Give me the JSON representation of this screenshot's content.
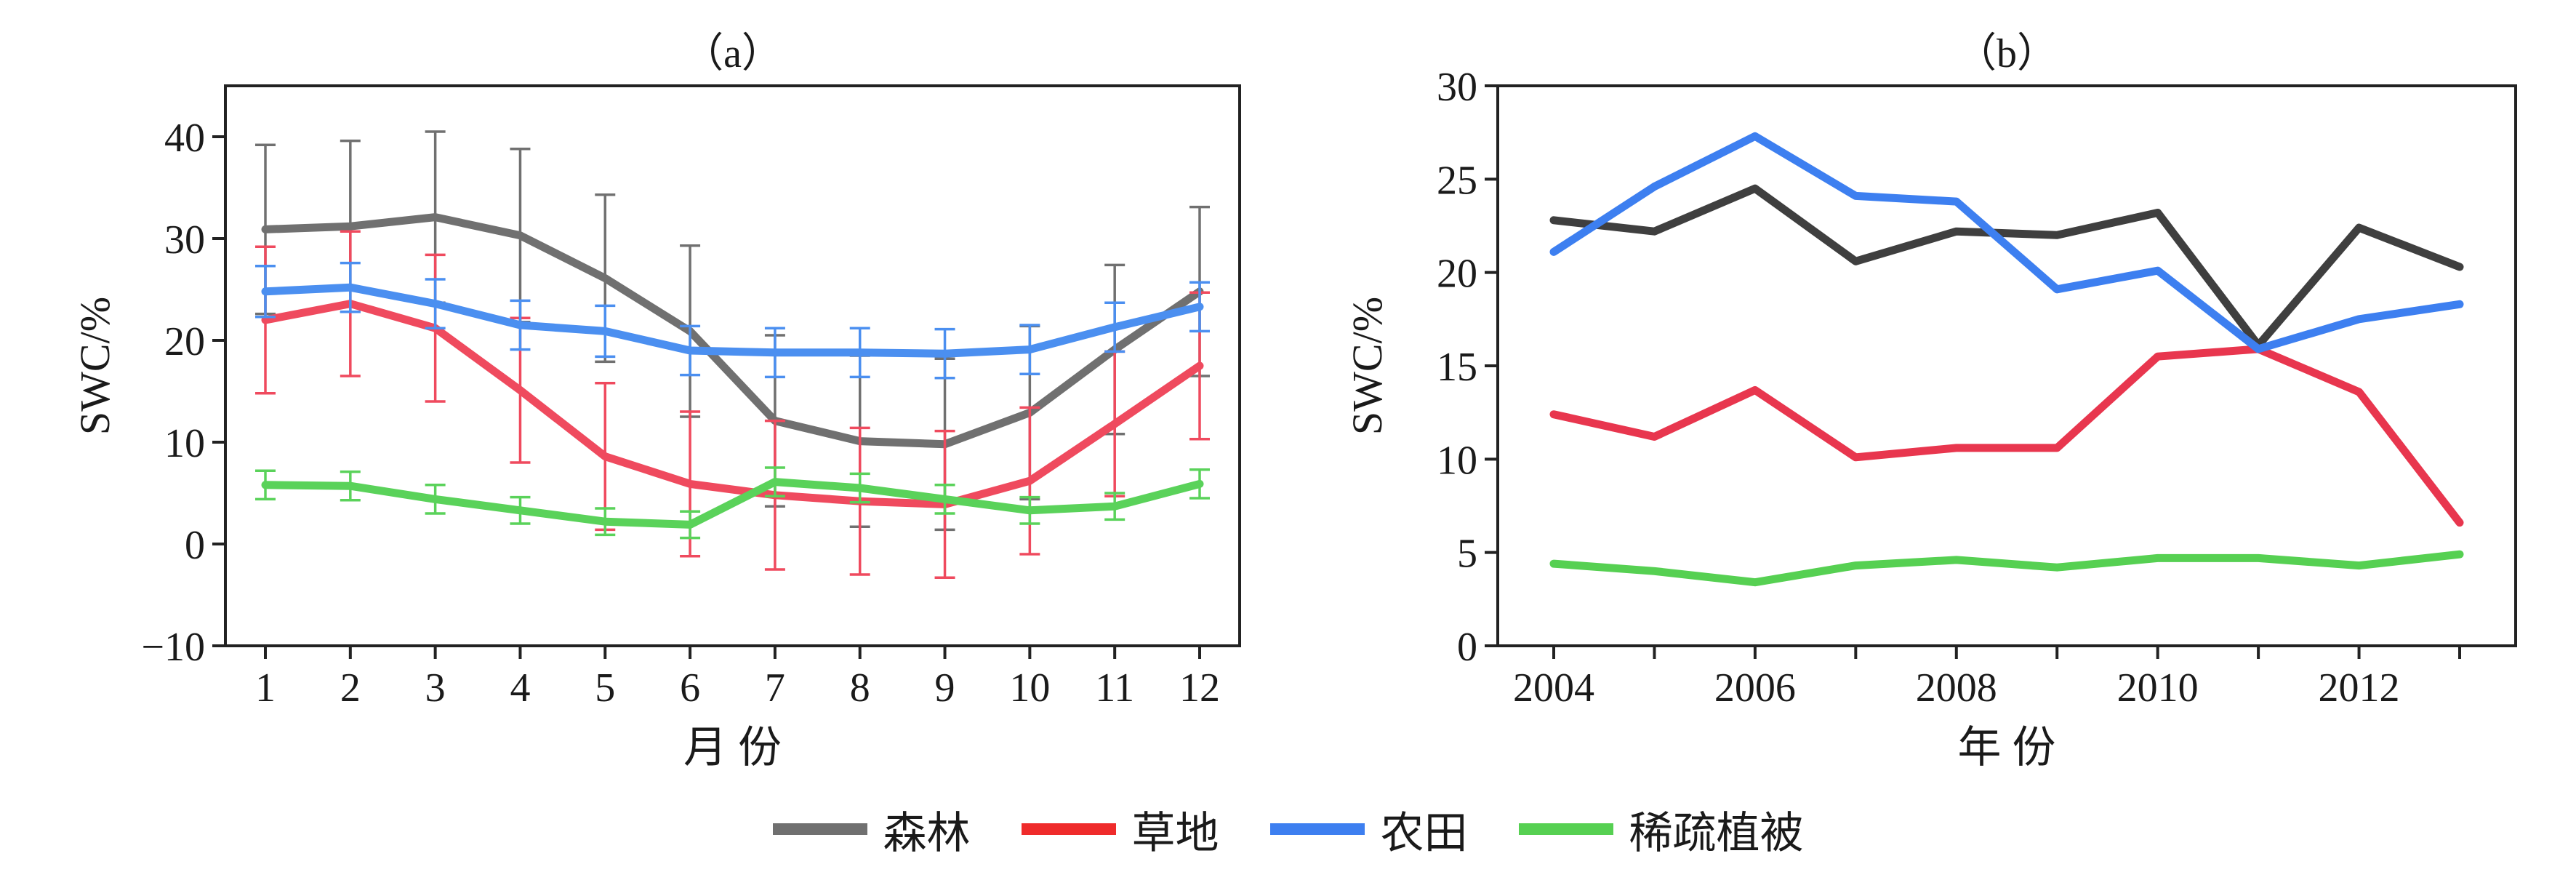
{
  "chart_data": [
    {
      "type": "line",
      "title": "（a）",
      "xlabel": "月 份",
      "ylabel": "SWC/%",
      "categories": [
        "1",
        "2",
        "3",
        "4",
        "5",
        "6",
        "7",
        "8",
        "9",
        "10",
        "11",
        "12"
      ],
      "ylim": [
        -10,
        45
      ],
      "yticks": [
        -10,
        0,
        10,
        20,
        30,
        40
      ],
      "error_bars": true,
      "series": [
        {
          "name": "森林",
          "color": "#707070",
          "values": [
            30.9,
            31.2,
            32.1,
            30.3,
            26.1,
            20.9,
            12.1,
            10.1,
            9.8,
            12.9,
            19.1,
            24.8
          ],
          "errors": [
            8.3,
            8.4,
            8.4,
            8.5,
            8.2,
            8.4,
            8.4,
            8.4,
            8.4,
            8.5,
            8.3,
            8.3
          ]
        },
        {
          "name": "草地",
          "color": "#ef4a5e",
          "values": [
            22.0,
            23.6,
            21.2,
            15.1,
            8.6,
            5.9,
            4.8,
            4.2,
            3.9,
            6.2,
            11.8,
            17.5
          ],
          "errors": [
            7.2,
            7.1,
            7.2,
            7.1,
            7.2,
            7.1,
            7.3,
            7.2,
            7.2,
            7.2,
            7.1,
            7.2
          ]
        },
        {
          "name": "农田",
          "color": "#4b8ff0",
          "values": [
            24.8,
            25.2,
            23.6,
            21.5,
            20.9,
            19.0,
            18.8,
            18.8,
            18.7,
            19.1,
            21.3,
            23.3
          ],
          "errors": [
            2.5,
            2.4,
            2.4,
            2.4,
            2.5,
            2.4,
            2.4,
            2.4,
            2.4,
            2.4,
            2.4,
            2.4
          ]
        },
        {
          "name": "稀疏植被",
          "color": "#5ad25a",
          "values": [
            5.8,
            5.7,
            4.4,
            3.3,
            2.2,
            1.9,
            6.1,
            5.5,
            4.4,
            3.3,
            3.7,
            5.9
          ],
          "errors": [
            1.4,
            1.4,
            1.4,
            1.3,
            1.3,
            1.3,
            1.4,
            1.4,
            1.4,
            1.3,
            1.3,
            1.4
          ]
        }
      ]
    },
    {
      "type": "line",
      "title": "（b）",
      "xlabel": "年 份",
      "ylabel": "SWC/%",
      "x": [
        2004,
        2005,
        2006,
        2007,
        2008,
        2009,
        2010,
        2011,
        2012,
        2013
      ],
      "xticks": [
        2004,
        2006,
        2008,
        2010,
        2012
      ],
      "ylim": [
        0,
        30
      ],
      "yticks": [
        0,
        5,
        10,
        15,
        20,
        25,
        30
      ],
      "series": [
        {
          "name": "森林",
          "color": "#3f3f3f",
          "values": [
            22.8,
            22.2,
            24.5,
            20.6,
            22.2,
            22.0,
            23.2,
            16.1,
            22.4,
            20.3
          ]
        },
        {
          "name": "草地",
          "color": "#e8364e",
          "values": [
            12.4,
            11.2,
            13.7,
            10.1,
            10.6,
            10.6,
            15.5,
            15.9,
            13.6,
            6.6
          ]
        },
        {
          "name": "农田",
          "color": "#3d7ff0",
          "values": [
            21.1,
            24.6,
            27.3,
            24.1,
            23.8,
            19.1,
            20.1,
            15.9,
            17.5,
            18.3
          ]
        },
        {
          "name": "稀疏植被",
          "color": "#56d052",
          "values": [
            4.4,
            4.0,
            3.4,
            4.3,
            4.6,
            4.2,
            4.7,
            4.7,
            4.3,
            4.9
          ]
        }
      ]
    }
  ],
  "legend": [
    {
      "label": "森林",
      "color": "#707070"
    },
    {
      "label": "草地",
      "color": "#ef2b2b"
    },
    {
      "label": "农田",
      "color": "#3d7ff0"
    },
    {
      "label": "稀疏植被",
      "color": "#56d052"
    }
  ]
}
